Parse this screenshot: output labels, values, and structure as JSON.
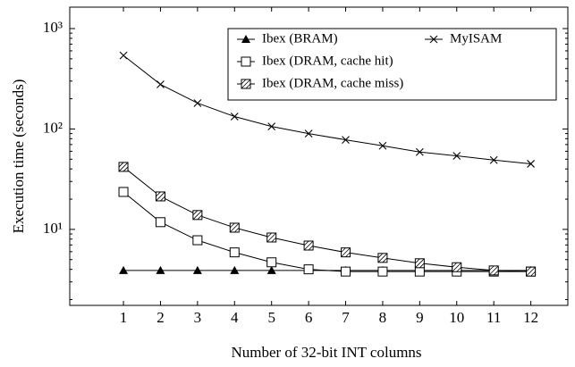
{
  "chart_data": {
    "type": "line",
    "x_label": "Number of 32-bit INT columns",
    "y_label": "Execution time (seconds)",
    "categories": [
      1,
      2,
      3,
      4,
      5,
      6,
      7,
      8,
      9,
      10,
      11,
      12
    ],
    "xlim": [
      -0.45,
      13
    ],
    "xticks": [
      1,
      2,
      3,
      4,
      5,
      6,
      7,
      8,
      9,
      10,
      11,
      12
    ],
    "ylim": [
      1.75,
      1635
    ],
    "log_y": true,
    "yticks": [
      {
        "value": 10,
        "label": "10¹"
      },
      {
        "value": 100,
        "label": "10²"
      },
      {
        "value": 1000,
        "label": "10³"
      }
    ],
    "minor_yticks": [
      2,
      3,
      4,
      5,
      6,
      7,
      8,
      9,
      20,
      30,
      40,
      50,
      60,
      70,
      80,
      90,
      200,
      300,
      400,
      500,
      600,
      700,
      800,
      900
    ],
    "grid": false,
    "legend": "upper right",
    "series": [
      {
        "name": "Ibex (BRAM)",
        "color": "#000000",
        "marker": "triangle",
        "values": [
          3.9,
          3.9,
          3.9,
          3.9,
          3.9,
          3.9,
          3.9,
          3.9,
          3.9,
          3.9,
          3.9,
          3.9
        ]
      },
      {
        "name": "MyISAM",
        "color": "#000000",
        "marker": "x",
        "values": [
          540,
          278,
          181,
          133,
          106,
          90,
          78,
          68,
          59,
          54,
          49,
          45
        ]
      },
      {
        "name": "Ibex (DRAM, cache hit)",
        "color": "#000000",
        "marker": "square",
        "values": [
          23.6,
          11.8,
          7.8,
          5.9,
          4.7,
          4.0,
          3.8,
          3.8,
          3.8,
          3.8,
          3.8,
          3.8
        ]
      },
      {
        "name": "Ibex (DRAM, cache miss)",
        "color": "#000000",
        "marker": "hatched-square",
        "values": [
          41.9,
          21.3,
          13.9,
          10.4,
          8.3,
          6.9,
          5.9,
          5.2,
          4.6,
          4.2,
          3.9,
          3.8
        ]
      }
    ]
  }
}
